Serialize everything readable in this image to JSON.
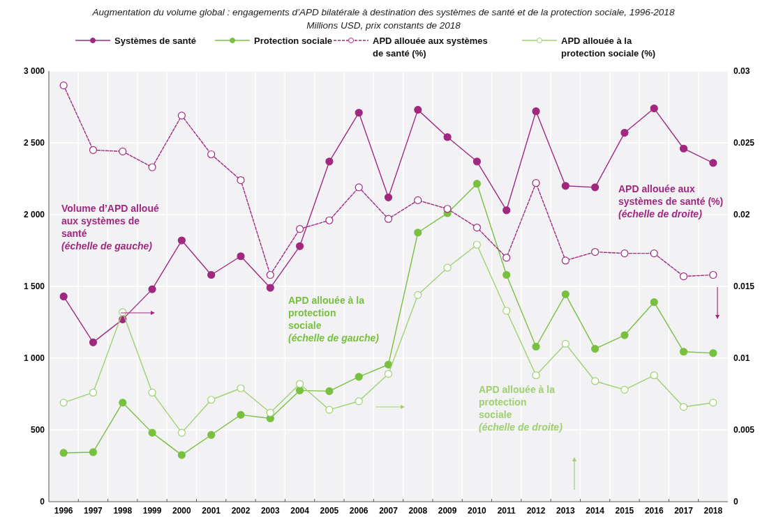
{
  "chart_data": {
    "type": "line",
    "subtitle": "Augmentation du volume global : engagements d’APD bilatérale à destination des systèmes de santé et de la protection sociale, 1996-2018",
    "title": "Millions USD, prix constants de 2018",
    "categories": [
      "1996",
      "1997",
      "1998",
      "1999",
      "2000",
      "2001",
      "2002",
      "2003",
      "2004",
      "2005",
      "2006",
      "2007",
      "2008",
      "2009",
      "2010",
      "2011",
      "2012",
      "2013",
      "2014",
      "2015",
      "2016",
      "2017",
      "2018"
    ],
    "series": [
      {
        "name": "Systèmes de santé",
        "color": "#a0287f",
        "line_style": "solid",
        "marker": "circle",
        "values": [
          1430,
          1110,
          1270,
          1480,
          1820,
          1580,
          1710,
          1490,
          1780,
          2370,
          2710,
          2120,
          2730,
          2540,
          2370,
          2030,
          2720,
          2200,
          2190,
          2570,
          2740,
          2460,
          2360
        ]
      },
      {
        "name": "Protection sociale",
        "color": "#78c03f",
        "line_style": "solid",
        "marker": "circle",
        "values": [
          340,
          345,
          690,
          480,
          325,
          465,
          605,
          580,
          775,
          770,
          870,
          955,
          1875,
          2010,
          2215,
          1580,
          1080,
          1445,
          1065,
          1160,
          1390,
          1045,
          1035
        ]
      },
      {
        "name": "APD allouée aux systèmes de santé (%)",
        "color": "#a0287f",
        "line_style": "dashed",
        "marker": "circle",
        "axis": "y2",
        "values": [
          0.029,
          0.0245,
          0.0244,
          0.0233,
          0.0269,
          0.0242,
          0.0224,
          0.0158,
          0.019,
          0.0196,
          0.0219,
          0.0197,
          0.021,
          0.0204,
          0.0191,
          0.017,
          0.0222,
          0.0168,
          0.0174,
          0.0173,
          0.0173,
          0.0157,
          0.0158
        ]
      },
      {
        "name": "APD allouée à la protection sociale (%)",
        "color": "#9fd070",
        "line_style": "solid",
        "marker": "circle",
        "axis": "y2",
        "values": [
          0.0069,
          0.0076,
          0.0132,
          0.0076,
          0.0048,
          0.0071,
          0.0079,
          0.0062,
          0.0082,
          0.0064,
          0.007,
          0.0089,
          0.0144,
          0.0163,
          0.0179,
          0.0133,
          0.0088,
          0.011,
          0.0084,
          0.0078,
          0.0088,
          0.0066,
          0.0069
        ]
      }
    ],
    "ylim": [
      0,
      3000
    ],
    "yticks": [
      0,
      500,
      {
        "value": 1000,
        "label": "1 000"
      },
      {
        "value": 1500,
        "label": "1 500"
      },
      {
        "value": 2000,
        "label": "2 000"
      },
      {
        "value": 2500,
        "label": "2 500"
      },
      {
        "value": 3000,
        "label": "3 000"
      }
    ],
    "y2lim": [
      0,
      0.03
    ],
    "y2ticks": [
      0,
      0.005,
      0.01,
      0.015,
      0.02,
      0.025,
      0.03
    ],
    "grid": true,
    "legend": "top",
    "annotations": [
      "Volume d’APD alloué aux systèmes de santé (échelle de gauche)",
      "APD allouée à la protection sociale (échelle de gauche)",
      "APD allouée aux systèmes de santé (%) (échelle de droite)",
      "APD allouée à la protection sociale (échelle de droite)"
    ]
  }
}
